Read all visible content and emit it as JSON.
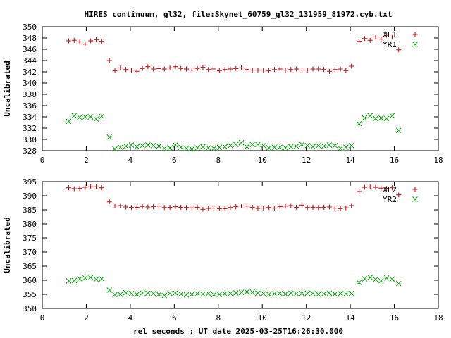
{
  "title": "HIRES continuum, gl32, file:Skynet_60759_gl32_131959_81972.cyb.txt",
  "xlabel": "rel seconds : UT date 2025-03-25T16:26:30.000",
  "chart_data": [
    {
      "type": "scatter",
      "ylabel": "Uncalibrated",
      "xlim": [
        0,
        18
      ],
      "ylim": [
        328,
        350
      ],
      "x_ticks": [
        0,
        2,
        4,
        6,
        8,
        10,
        12,
        14,
        16,
        18
      ],
      "y_ticks": [
        328,
        330,
        332,
        334,
        336,
        338,
        340,
        342,
        344,
        346,
        348,
        350
      ],
      "grid": false,
      "legend_position": "top-right",
      "series": [
        {
          "name": "XL1",
          "marker": "plus",
          "color": "#cc0000",
          "x": [
            1.2,
            1.45,
            1.7,
            1.95,
            2.2,
            2.45,
            2.7,
            3.05,
            3.3,
            3.55,
            3.8,
            4.05,
            4.3,
            4.55,
            4.8,
            5.05,
            5.3,
            5.55,
            5.8,
            6.05,
            6.3,
            6.55,
            6.8,
            7.05,
            7.3,
            7.55,
            7.8,
            8.05,
            8.3,
            8.55,
            8.8,
            9.05,
            9.3,
            9.55,
            9.8,
            10.05,
            10.3,
            10.55,
            10.8,
            11.05,
            11.3,
            11.55,
            11.8,
            12.05,
            12.3,
            12.55,
            12.8,
            13.05,
            13.3,
            13.55,
            13.8,
            14.05,
            14.4,
            14.65,
            14.9,
            15.15,
            15.4,
            15.65,
            15.9,
            16.2
          ],
          "y": [
            347.5,
            347.6,
            347.3,
            346.9,
            347.5,
            347.7,
            347.4,
            344.0,
            342.2,
            342.7,
            342.4,
            342.3,
            342.1,
            342.6,
            342.9,
            342.5,
            342.6,
            342.5,
            342.7,
            342.9,
            342.6,
            342.5,
            342.3,
            342.6,
            342.8,
            342.4,
            342.5,
            342.2,
            342.4,
            342.5,
            342.6,
            342.7,
            342.4,
            342.3,
            342.3,
            342.3,
            342.2,
            342.4,
            342.5,
            342.3,
            342.4,
            342.5,
            342.3,
            342.3,
            342.5,
            342.5,
            342.4,
            342.1,
            342.4,
            342.5,
            342.2,
            343.0,
            347.4,
            347.9,
            347.6,
            348.2,
            347.8,
            348.5,
            348.2,
            345.9
          ]
        },
        {
          "name": "YR1",
          "marker": "cross",
          "color": "#00aa00",
          "x": [
            1.2,
            1.45,
            1.7,
            1.95,
            2.2,
            2.45,
            2.7,
            3.05,
            3.3,
            3.55,
            3.8,
            4.05,
            4.3,
            4.55,
            4.8,
            5.05,
            5.3,
            5.55,
            5.8,
            6.05,
            6.3,
            6.55,
            6.8,
            7.05,
            7.3,
            7.55,
            7.8,
            8.05,
            8.3,
            8.55,
            8.8,
            9.05,
            9.3,
            9.55,
            9.8,
            10.05,
            10.3,
            10.55,
            10.8,
            11.05,
            11.3,
            11.55,
            11.8,
            12.05,
            12.3,
            12.55,
            12.8,
            13.05,
            13.3,
            13.55,
            13.8,
            14.05,
            14.4,
            14.65,
            14.9,
            15.15,
            15.4,
            15.65,
            15.9,
            16.2
          ],
          "y": [
            333.2,
            334.2,
            333.9,
            334.0,
            334.0,
            333.6,
            334.1,
            330.4,
            328.3,
            328.6,
            328.8,
            329.0,
            328.7,
            328.9,
            329.0,
            328.9,
            328.8,
            328.4,
            328.5,
            329.0,
            328.6,
            328.4,
            328.3,
            328.5,
            328.7,
            328.5,
            328.4,
            328.6,
            328.7,
            328.9,
            329.1,
            329.4,
            328.7,
            329.1,
            329.1,
            328.9,
            328.5,
            328.6,
            328.6,
            328.5,
            328.7,
            328.8,
            329.1,
            328.9,
            328.7,
            328.9,
            328.8,
            329.0,
            328.9,
            328.4,
            328.6,
            328.9,
            332.8,
            333.8,
            334.2,
            333.7,
            333.8,
            333.7,
            334.2,
            331.6
          ]
        }
      ]
    },
    {
      "type": "scatter",
      "ylabel": "Uncalibrated",
      "xlim": [
        0,
        18
      ],
      "ylim": [
        350,
        395
      ],
      "x_ticks": [
        0,
        2,
        4,
        6,
        8,
        10,
        12,
        14,
        16,
        18
      ],
      "y_ticks": [
        350,
        355,
        360,
        365,
        370,
        375,
        380,
        385,
        390,
        395
      ],
      "grid": false,
      "legend_position": "top-right",
      "series": [
        {
          "name": "XL2",
          "marker": "plus",
          "color": "#cc0000",
          "x": [
            1.2,
            1.45,
            1.7,
            1.95,
            2.2,
            2.45,
            2.7,
            3.05,
            3.3,
            3.55,
            3.8,
            4.05,
            4.3,
            4.55,
            4.8,
            5.05,
            5.3,
            5.55,
            5.8,
            6.05,
            6.3,
            6.55,
            6.8,
            7.05,
            7.3,
            7.55,
            7.8,
            8.05,
            8.3,
            8.55,
            8.8,
            9.05,
            9.3,
            9.55,
            9.8,
            10.05,
            10.3,
            10.55,
            10.8,
            11.05,
            11.3,
            11.55,
            11.8,
            12.05,
            12.3,
            12.55,
            12.8,
            13.05,
            13.3,
            13.55,
            13.8,
            14.05,
            14.4,
            14.65,
            14.9,
            15.15,
            15.4,
            15.65,
            15.9,
            16.2
          ],
          "y": [
            392.8,
            392.5,
            392.6,
            393.0,
            393.2,
            393.2,
            392.8,
            387.8,
            386.4,
            386.5,
            386.0,
            385.8,
            385.9,
            386.2,
            386.0,
            386.1,
            386.3,
            385.8,
            385.9,
            386.1,
            385.9,
            385.8,
            385.7,
            385.9,
            385.2,
            385.5,
            385.6,
            385.4,
            385.4,
            385.8,
            386.1,
            386.4,
            386.3,
            385.9,
            385.5,
            385.6,
            385.8,
            385.6,
            386.1,
            386.3,
            386.5,
            385.9,
            386.7,
            385.8,
            385.9,
            385.8,
            385.9,
            386.0,
            385.6,
            385.4,
            385.7,
            386.5,
            391.5,
            393.0,
            393.1,
            393.0,
            392.7,
            392.6,
            392.8,
            390.3
          ]
        },
        {
          "name": "YR2",
          "marker": "cross",
          "color": "#00aa00",
          "x": [
            1.2,
            1.45,
            1.7,
            1.95,
            2.2,
            2.45,
            2.7,
            3.05,
            3.3,
            3.55,
            3.8,
            4.05,
            4.3,
            4.55,
            4.8,
            5.05,
            5.3,
            5.55,
            5.8,
            6.05,
            6.3,
            6.55,
            6.8,
            7.05,
            7.3,
            7.55,
            7.8,
            8.05,
            8.3,
            8.55,
            8.8,
            9.05,
            9.3,
            9.55,
            9.8,
            10.05,
            10.3,
            10.55,
            10.8,
            11.05,
            11.3,
            11.55,
            11.8,
            12.05,
            12.3,
            12.55,
            12.8,
            13.05,
            13.3,
            13.55,
            13.8,
            14.05,
            14.4,
            14.65,
            14.9,
            15.15,
            15.4,
            15.65,
            15.9,
            16.2
          ],
          "y": [
            359.8,
            359.9,
            360.5,
            360.8,
            361.0,
            360.3,
            360.5,
            356.5,
            354.9,
            355.0,
            355.6,
            355.3,
            355.0,
            355.5,
            355.4,
            355.3,
            355.0,
            354.6,
            355.3,
            355.5,
            355.1,
            354.8,
            355.0,
            355.2,
            355.1,
            355.3,
            354.9,
            355.0,
            355.2,
            355.3,
            355.5,
            355.7,
            355.9,
            355.8,
            355.4,
            355.3,
            355.0,
            355.2,
            355.3,
            355.1,
            355.4,
            355.2,
            355.3,
            355.4,
            355.3,
            355.0,
            355.2,
            355.4,
            355.1,
            355.3,
            355.2,
            355.3,
            359.2,
            360.5,
            361.0,
            360.3,
            359.8,
            360.8,
            360.4,
            358.8
          ]
        }
      ]
    }
  ]
}
